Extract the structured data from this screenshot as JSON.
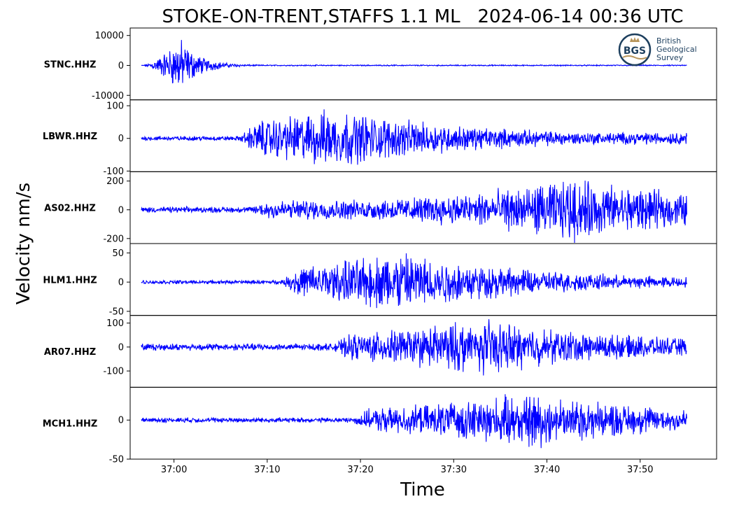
{
  "chart_data": {
    "type": "line",
    "title": "STOKE-ON-TRENT,STAFFS 1.1 ML   2024-06-14 00:36 UTC",
    "xlabel": "Time",
    "ylabel": "Velocity nm/s",
    "x_ticks": [
      "37:00",
      "37:10",
      "37:20",
      "37:30",
      "37:40",
      "37:50"
    ],
    "x_range_seconds": [
      36.8,
      58.2
    ],
    "trace_start_seconds": 36.5,
    "trace_end_seconds": 37.5,
    "line_color": "#0000ff",
    "grid": false,
    "panels": [
      {
        "station": "STNC.HHZ",
        "ylim": [
          -11500,
          12500
        ],
        "yticks": [
          10000,
          0,
          -10000
        ],
        "ytick_labels": [
          "10000",
          "0",
          "-10000"
        ],
        "onset": 56.6,
        "noise": 90,
        "peak": 12000,
        "peak_time": 60.6,
        "decay": 2.0,
        "tail": 150
      },
      {
        "station": "LBWR.HHZ",
        "ylim": [
          -102,
          118
        ],
        "yticks": [
          100,
          0,
          -100
        ],
        "ytick_labels": [
          "100",
          "0",
          "-100"
        ],
        "onset": 67.0,
        "noise": 9,
        "peak": 105,
        "peak_time": 77.0,
        "decay": 14,
        "tail": 14
      },
      {
        "station": "AS02.HHZ",
        "ylim": [
          -235,
          265
        ],
        "yticks": [
          200,
          0,
          -200
        ],
        "ytick_labels": [
          "200",
          "0",
          "-200"
        ],
        "onset": 68.0,
        "noise": 25,
        "peak": 245,
        "peak_time": 103.0,
        "decay": 16,
        "tail": 60
      },
      {
        "station": "HLM1.HHZ",
        "ylim": [
          -57,
          66
        ],
        "yticks": [
          50,
          0,
          -50
        ],
        "ytick_labels": [
          "50",
          "0",
          "-50"
        ],
        "onset": 71.5,
        "noise": 4,
        "peak": 62,
        "peak_time": 84.0,
        "decay": 14,
        "tail": 7
      },
      {
        "station": "AR07.HHZ",
        "ylim": [
          -168,
          132
        ],
        "yticks": [
          100,
          0,
          -100
        ],
        "ytick_labels": [
          "100",
          "0",
          "-100"
        ],
        "onset": 77.0,
        "noise": 18,
        "peak": 130,
        "peak_time": 92.5,
        "decay": 14,
        "tail": 28
      },
      {
        "station": "MCH1.HHZ",
        "ylim": [
          -50,
          42
        ],
        "yticks": [
          0,
          -50
        ],
        "ytick_labels": [
          "0",
          "-50"
        ],
        "onset": 79.0,
        "noise": 4,
        "peak": 40,
        "peak_time": 98.0,
        "decay": 16,
        "tail": 9
      }
    ]
  },
  "logo": {
    "initials": "BGS",
    "line1": "British",
    "line2": "Geological",
    "line3": "Survey"
  }
}
